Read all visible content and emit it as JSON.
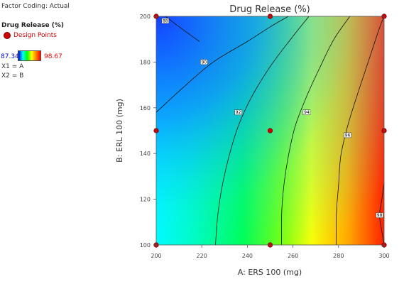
{
  "legend": {
    "factor_coding": "Factor Coding: Actual",
    "response_name": "Drug Release (%)",
    "design_points_label": "Design Points",
    "scale_min": "87.34",
    "scale_max": "98.67",
    "x1_mapping": "X1 = A",
    "x2_mapping": "X2 = B",
    "design_point_color": "#cc0000",
    "scale_colors": [
      "#0000c8",
      "#00ffff",
      "#00ff00",
      "#ffff00",
      "#ff8000",
      "#ff0000"
    ]
  },
  "chart_data": {
    "type": "heatmap",
    "subtype": "contour",
    "title": "Drug Release (%)",
    "xlabel": "A: ERS 100 (mg)",
    "ylabel": "B: ERL 100 (mg)",
    "xlim": [
      200,
      300
    ],
    "ylim": [
      100,
      200
    ],
    "x_ticks": [
      "200",
      "220",
      "240",
      "260",
      "280",
      "300"
    ],
    "y_ticks": [
      "100",
      "120",
      "140",
      "160",
      "180",
      "200"
    ],
    "z_range": [
      87.34,
      98.67
    ],
    "contours": [
      {
        "label": "88",
        "points": [
          [
            204,
            200
          ],
          [
            212,
            194
          ],
          [
            219,
            189
          ]
        ]
      },
      {
        "label": "90",
        "points": [
          [
            200,
            158
          ],
          [
            212,
            169
          ],
          [
            225,
            180
          ],
          [
            240,
            189
          ],
          [
            251,
            196
          ],
          [
            258,
            200
          ]
        ]
      },
      {
        "label": "92",
        "points": [
          [
            226,
            100
          ],
          [
            227,
            113
          ],
          [
            229,
            126
          ],
          [
            232,
            139
          ],
          [
            236,
            152
          ],
          [
            242,
            165
          ],
          [
            250,
            178
          ],
          [
            259,
            190
          ],
          [
            267,
            200
          ]
        ]
      },
      {
        "label": "94",
        "points": [
          [
            255,
            100
          ],
          [
            255,
            113
          ],
          [
            256,
            126
          ],
          [
            258,
            139
          ],
          [
            261,
            152
          ],
          [
            266,
            165
          ],
          [
            272,
            178
          ],
          [
            278,
            190
          ],
          [
            285,
            200
          ]
        ]
      },
      {
        "label": "96",
        "points": [
          [
            279,
            100
          ],
          [
            279,
            113
          ],
          [
            280,
            126
          ],
          [
            281,
            139
          ],
          [
            284,
            152
          ],
          [
            288,
            165
          ],
          [
            293,
            180
          ],
          [
            298,
            195
          ],
          [
            300,
            200
          ]
        ]
      },
      {
        "label": "98",
        "points": [
          [
            300,
            127
          ],
          [
            299,
            120
          ],
          [
            298,
            113
          ],
          [
            299,
            106
          ],
          [
            300,
            100
          ]
        ]
      }
    ],
    "contour_labels": [
      {
        "text": "88",
        "x": 204,
        "y": 198
      },
      {
        "text": "90",
        "x": 221,
        "y": 180
      },
      {
        "text": "92",
        "x": 236,
        "y": 158
      },
      {
        "text": "94",
        "x": 266,
        "y": 158
      },
      {
        "text": "96",
        "x": 284,
        "y": 148
      },
      {
        "text": "98",
        "x": 298,
        "y": 113
      }
    ],
    "design_points": [
      [
        200,
        100
      ],
      [
        250,
        100
      ],
      [
        300,
        100
      ],
      [
        200,
        150
      ],
      [
        250,
        150
      ],
      [
        300,
        150
      ],
      [
        200,
        200
      ],
      [
        250,
        200
      ],
      [
        300,
        200
      ]
    ]
  }
}
